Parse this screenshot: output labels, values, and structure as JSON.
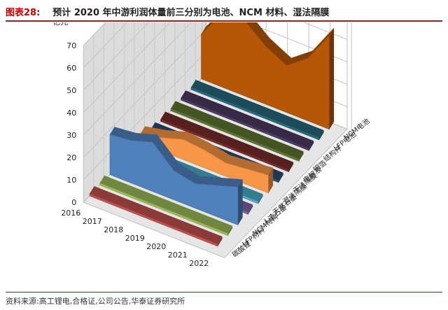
{
  "header": {
    "figure_no": "图表28:",
    "title": "预计 2020 年中游利润体量前三分别为电池、NCM 材料、湿法隔膜"
  },
  "footer": {
    "source": "资料来源:高工锂电,合格证,公司公告,华泰证券研究所"
  },
  "chart_data": {
    "type": "area",
    "subtype": "3d-area",
    "title": "",
    "xlabel": "",
    "ylabel": "亿元",
    "ylim": [
      0,
      70
    ],
    "yticks": [
      0,
      10,
      20,
      30,
      40,
      50,
      60,
      70
    ],
    "grid": true,
    "legend": "none",
    "x": [
      "2016",
      "2017",
      "2018",
      "2019",
      "2020",
      "2021",
      "2022"
    ],
    "series": [
      {
        "name": "碳酸锂",
        "color": "#c0504d",
        "values": [
          1,
          1,
          1,
          1,
          1,
          1,
          1
        ]
      },
      {
        "name": "LFP材料",
        "color": "#9bbb59",
        "values": [
          1,
          1,
          1,
          1,
          1,
          1,
          1
        ]
      },
      {
        "name": "NCM材料",
        "color": "#4f81bd",
        "values": [
          18,
          19,
          22,
          13,
          11,
          14,
          17
        ]
      },
      {
        "name": "人造石墨",
        "color": "#8064a2",
        "values": [
          1,
          1,
          1,
          1,
          1,
          1,
          1
        ]
      },
      {
        "name": "天然石墨",
        "color": "#4bacc6",
        "values": [
          1,
          1,
          1,
          1,
          1,
          1,
          1
        ]
      },
      {
        "name": "湿法隔膜",
        "color": "#f79646",
        "values": [
          4,
          6,
          9,
          8,
          6,
          7,
          8
        ]
      },
      {
        "name": "干法隔膜",
        "color": "#2c4d75",
        "values": [
          1,
          1,
          1,
          1,
          1,
          1,
          1
        ]
      },
      {
        "name": "电解液",
        "color": "#772c2a",
        "values": [
          1,
          1,
          1,
          1,
          1,
          1,
          1
        ]
      },
      {
        "name": "铜箔",
        "color": "#5f7530",
        "values": [
          1,
          1,
          1,
          1,
          1,
          1,
          1
        ]
      },
      {
        "name": "结构件",
        "color": "#4d3b62",
        "values": [
          1,
          1,
          1,
          1,
          1,
          1,
          1
        ]
      },
      {
        "name": "LFP电池",
        "color": "#276a7c",
        "values": [
          1,
          1,
          1,
          1,
          1,
          1,
          1
        ]
      },
      {
        "name": "NCM电池",
        "color": "#b65708",
        "values": [
          20,
          33,
          34,
          26,
          21,
          28,
          42
        ]
      }
    ]
  }
}
